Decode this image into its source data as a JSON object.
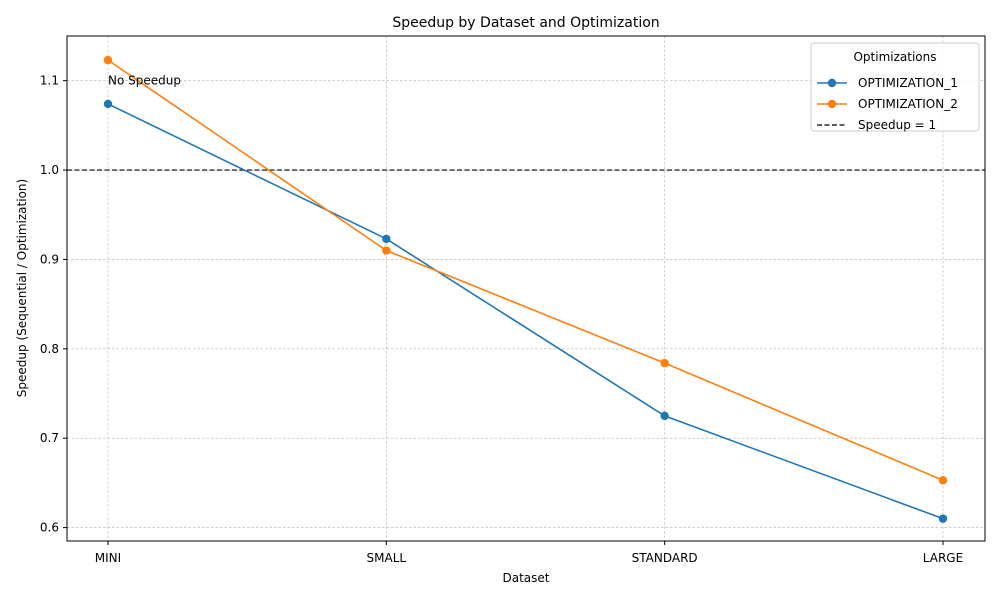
{
  "chart_data": {
    "type": "line",
    "title": "Speedup by Dataset and Optimization",
    "xlabel": "Dataset",
    "ylabel": "Speedup (Sequential / Optimization)",
    "categories": [
      "MINI",
      "SMALL",
      "STANDARD",
      "LARGE"
    ],
    "series": [
      {
        "name": "OPTIMIZATION_1",
        "color": "#1f77b4",
        "values": [
          1.074,
          0.923,
          0.725,
          0.61
        ]
      },
      {
        "name": "OPTIMIZATION_2",
        "color": "#ff7f0e",
        "values": [
          1.123,
          0.91,
          0.784,
          0.653
        ]
      }
    ],
    "ylim": [
      0.585,
      1.15
    ],
    "yticks": [
      0.6,
      0.7,
      0.8,
      0.9,
      1.0,
      1.1
    ],
    "ytick_labels": [
      "0.6",
      "0.7",
      "0.8",
      "0.9",
      "1.0",
      "1.1"
    ],
    "reference_line": {
      "y": 1.0,
      "label": "Speedup = 1",
      "color": "#000000",
      "style": "dashed"
    },
    "annotation": {
      "text": "No Speedup",
      "category": "MINI",
      "y": 1.1
    },
    "grid": true,
    "legend": {
      "title": "Optimizations",
      "position": "top-right"
    }
  }
}
